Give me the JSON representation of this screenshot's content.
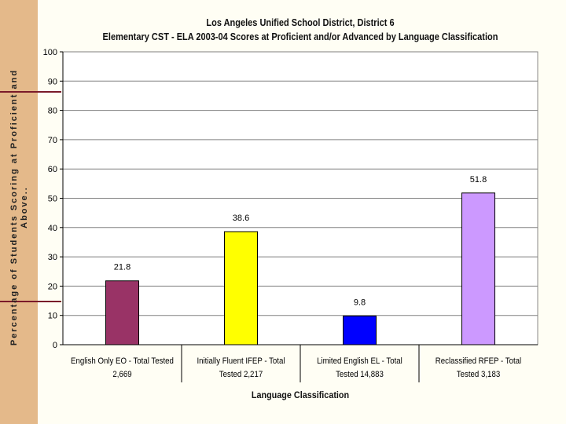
{
  "chart_data": {
    "type": "bar",
    "title": "Los Angeles Unified School District, District 6",
    "subtitle": "Elementary CST - ELA 2003-04 Scores at Proficient and/or Advanced by Language Classification",
    "xlabel": "Language Classification",
    "ylabel": "Percentage of Students Scoring at Proficient and Above..",
    "ylim": [
      0,
      100
    ],
    "yticks": [
      0,
      10,
      20,
      30,
      40,
      50,
      60,
      70,
      80,
      90,
      100
    ],
    "categories": [
      [
        "English Only EO - Total Tested",
        "2,669"
      ],
      [
        "Initially Fluent IFEP - Total",
        "Tested 2,217"
      ],
      [
        "Limited English EL - Total",
        "Tested 14,883"
      ],
      [
        "Reclassified RFEP - Total",
        "Tested 3,183"
      ]
    ],
    "values": [
      21.8,
      38.6,
      9.8,
      51.8
    ],
    "value_labels": [
      "21.8",
      "38.6",
      "9.8",
      "51.8"
    ],
    "colors": [
      "#993366",
      "#ffff00",
      "#0000ff",
      "#cc99ff"
    ],
    "grid": true,
    "legend": "none"
  }
}
